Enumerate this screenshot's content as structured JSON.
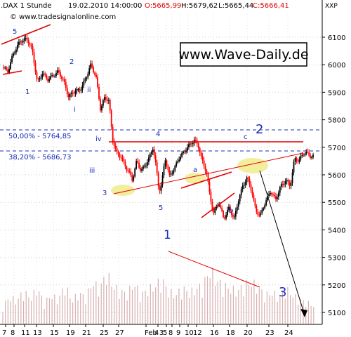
{
  "header": {
    "symbol": ".DAX 1 Stunde",
    "datetime": "19.02.2010 14:00:00",
    "open": "O:5665,99",
    "high": "H:5679,62",
    "low": "L:5665,44",
    "close": "C:5666,41",
    "source": "© www.tradesignalonline.com",
    "corner": "XXP"
  },
  "watermark": "www.Wave-Daily.de",
  "colors": {
    "up": "#000000",
    "down": "#ff0000",
    "wave": "#1a2eb8",
    "trend": "#e00000",
    "fib": "#1a2eb8",
    "highlight": "#f2ee9c",
    "volume": "#d8b0b0"
  },
  "chart_data": {
    "type": "candlestick",
    "y_axis": {
      "min": 5050,
      "max": 6150,
      "ticks": [
        "6100",
        "6000",
        "5900",
        "5800",
        "5700",
        "5600",
        "5500",
        "5400",
        "5300",
        "5200",
        "5100"
      ]
    },
    "x_axis": {
      "ticks": [
        "7",
        "8",
        "11",
        "13",
        "15",
        "19",
        "21",
        "25",
        "27",
        "Feb 3",
        "4",
        "5",
        "8",
        "9",
        "10",
        "12",
        "16",
        "18",
        "20",
        "23",
        "24"
      ]
    },
    "fib_levels": [
      {
        "label": "50,00% - 5764,85",
        "value": 5764.85
      },
      {
        "label": "38,20% - 5686,73",
        "value": 5686.73
      }
    ],
    "wave_labels": [
      "5",
      "1",
      "2",
      "i",
      "ii",
      "iii",
      "iv",
      "3",
      "4",
      "5",
      "1",
      "a",
      "b",
      "c",
      "2",
      "3"
    ],
    "price_path": [
      [
        0,
        5990
      ],
      [
        6,
        5975
      ],
      [
        12,
        6040
      ],
      [
        20,
        6085
      ],
      [
        28,
        6095
      ],
      [
        34,
        6055
      ],
      [
        40,
        5935
      ],
      [
        46,
        5970
      ],
      [
        52,
        5945
      ],
      [
        58,
        5960
      ],
      [
        64,
        5975
      ],
      [
        70,
        5945
      ],
      [
        76,
        5885
      ],
      [
        84,
        5905
      ],
      [
        90,
        5910
      ],
      [
        96,
        5950
      ],
      [
        102,
        6000
      ],
      [
        108,
        5955
      ],
      [
        113,
        5840
      ],
      [
        118,
        5880
      ],
      [
        123,
        5870
      ],
      [
        127,
        5730
      ],
      [
        132,
        5680
      ],
      [
        137,
        5665
      ],
      [
        142,
        5630
      ],
      [
        147,
        5605
      ],
      [
        150,
        5580
      ],
      [
        155,
        5650
      ],
      [
        160,
        5615
      ],
      [
        166,
        5640
      ],
      [
        170,
        5665
      ],
      [
        174,
        5700
      ],
      [
        178,
        5620
      ],
      [
        181,
        5540
      ],
      [
        184,
        5570
      ],
      [
        188,
        5660
      ],
      [
        193,
        5595
      ],
      [
        199,
        5625
      ],
      [
        204,
        5660
      ],
      [
        209,
        5680
      ],
      [
        214,
        5700
      ],
      [
        218,
        5715
      ],
      [
        222,
        5725
      ],
      [
        226,
        5710
      ],
      [
        231,
        5650
      ],
      [
        236,
        5610
      ],
      [
        240,
        5520
      ],
      [
        244,
        5460
      ],
      [
        250,
        5500
      ],
      [
        256,
        5440
      ],
      [
        262,
        5480
      ],
      [
        268,
        5440
      ],
      [
        273,
        5510
      ],
      [
        278,
        5560
      ],
      [
        283,
        5590
      ],
      [
        288,
        5545
      ],
      [
        293,
        5470
      ],
      [
        298,
        5450
      ],
      [
        304,
        5500
      ],
      [
        310,
        5540
      ],
      [
        316,
        5510
      ],
      [
        322,
        5560
      ],
      [
        328,
        5580
      ],
      [
        333,
        5560
      ],
      [
        338,
        5660
      ],
      [
        343,
        5650
      ],
      [
        347,
        5675
      ],
      [
        352,
        5680
      ],
      [
        357,
        5665
      ],
      [
        360,
        5668
      ]
    ],
    "volume_path": [
      [
        0,
        30
      ],
      [
        8,
        45
      ],
      [
        16,
        38
      ],
      [
        24,
        55
      ],
      [
        32,
        42
      ],
      [
        40,
        60
      ],
      [
        48,
        35
      ],
      [
        56,
        48
      ],
      [
        64,
        40
      ],
      [
        72,
        65
      ],
      [
        80,
        38
      ],
      [
        88,
        52
      ],
      [
        96,
        44
      ],
      [
        104,
        70
      ],
      [
        112,
        58
      ],
      [
        120,
        85
      ],
      [
        128,
        62
      ],
      [
        136,
        55
      ],
      [
        144,
        50
      ],
      [
        152,
        68
      ],
      [
        160,
        48
      ],
      [
        168,
        58
      ],
      [
        176,
        62
      ],
      [
        184,
        75
      ],
      [
        192,
        54
      ],
      [
        200,
        48
      ],
      [
        208,
        60
      ],
      [
        216,
        52
      ],
      [
        224,
        58
      ],
      [
        232,
        66
      ],
      [
        240,
        90
      ],
      [
        248,
        72
      ],
      [
        256,
        64
      ],
      [
        264,
        58
      ],
      [
        272,
        55
      ],
      [
        280,
        66
      ],
      [
        288,
        70
      ],
      [
        296,
        60
      ],
      [
        304,
        48
      ],
      [
        312,
        52
      ],
      [
        320,
        45
      ],
      [
        328,
        58
      ],
      [
        336,
        48
      ],
      [
        344,
        40
      ],
      [
        352,
        36
      ],
      [
        360,
        30
      ]
    ]
  }
}
